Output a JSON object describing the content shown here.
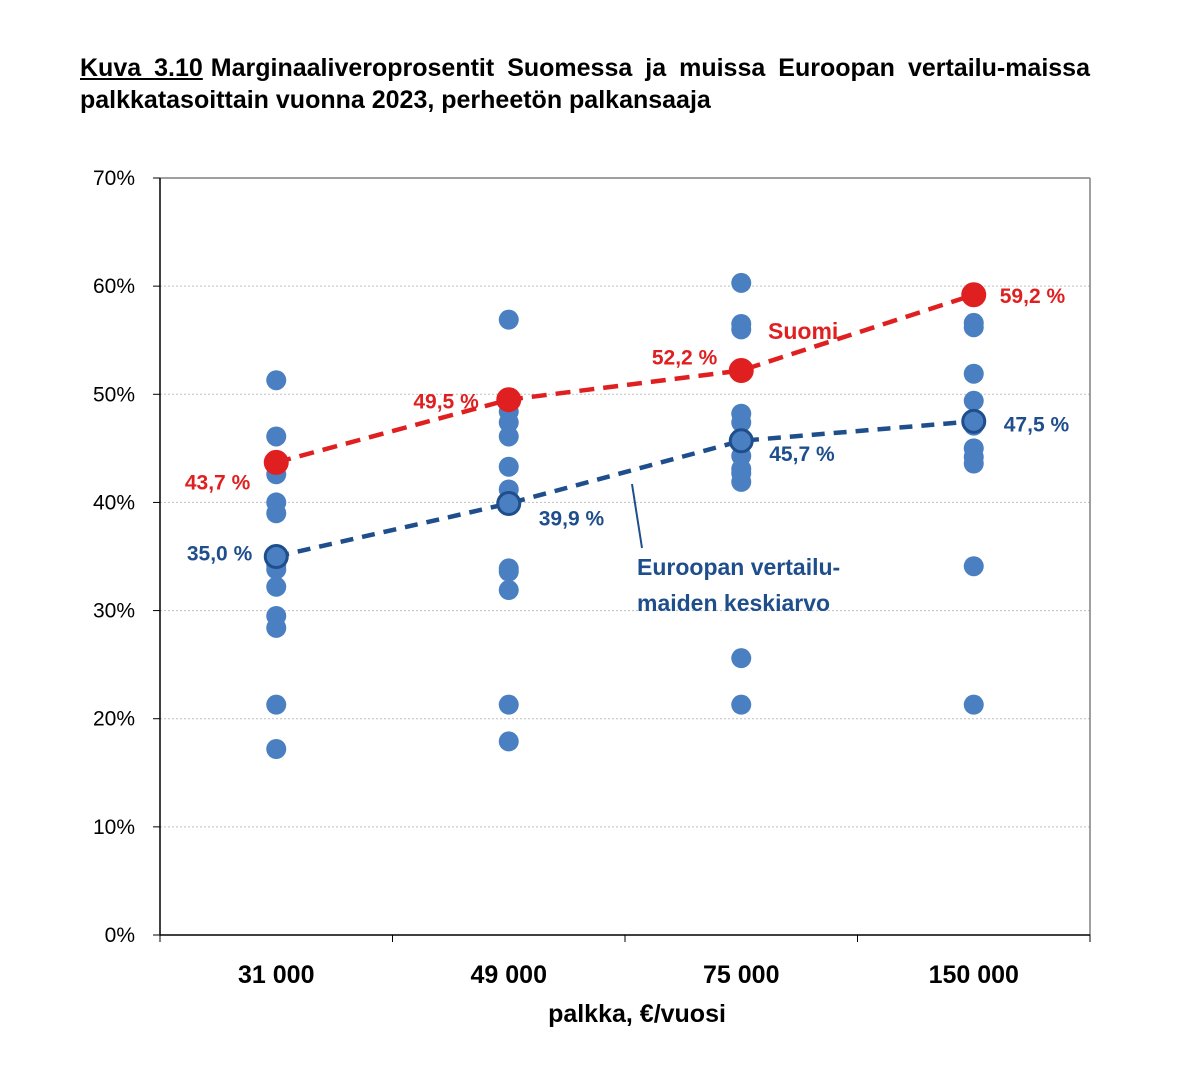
{
  "title": {
    "figure_label": "Kuva 3.10",
    "text": "Marginaaliveroprosentit Suomessa ja muissa Euroopan vertailu-maissa palkkatasoittain vuonna 2023, perheetön palkansaaja"
  },
  "chart_data": {
    "type": "scatter",
    "title": "Kuva 3.10 Marginaaliveroprosentit Suomessa ja muissa Euroopan vertailu-maissa palkkatasoittain vuonna 2023, perheetön palkansaaja",
    "xlabel": "palkka, €/vuosi",
    "ylabel": "",
    "categories": [
      "31 000",
      "49 000",
      "75 000",
      "150 000"
    ],
    "ylim": [
      0,
      70
    ],
    "yticks": [
      "0%",
      "10%",
      "20%",
      "30%",
      "40%",
      "50%",
      "60%",
      "70%"
    ],
    "grid": "horizontal",
    "country_points": [
      [
        51.3,
        46.1,
        42.6,
        40.0,
        39.0,
        35.0,
        34.2,
        33.8,
        32.2,
        29.5,
        28.4,
        21.3,
        17.2
      ],
      [
        56.9,
        49.5,
        48.4,
        47.4,
        46.1,
        43.3,
        41.2,
        40.3,
        33.9,
        33.6,
        31.9,
        21.3,
        17.9
      ],
      [
        60.3,
        56.5,
        56.0,
        52.2,
        48.2,
        47.4,
        45.5,
        44.3,
        43.1,
        42.7,
        41.9,
        25.6,
        21.3
      ],
      [
        59.3,
        56.6,
        56.2,
        51.9,
        49.4,
        47.3,
        47.1,
        45.0,
        44.2,
        43.6,
        34.1,
        21.3
      ]
    ],
    "series": [
      {
        "name": "Suomi",
        "values": [
          43.7,
          49.5,
          52.2,
          59.2
        ],
        "labels": [
          "43,7 %",
          "49,5 %",
          "52,2 %",
          "59,2 %"
        ],
        "color": "#e02020"
      },
      {
        "name": "Euroopan vertailu-maiden keskiarvo",
        "name_lines": [
          "Euroopan vertailu-",
          "maiden keskiarvo"
        ],
        "values": [
          35.0,
          39.9,
          45.7,
          47.5
        ],
        "labels": [
          "35,0 %",
          "39,9 %",
          "45,7 %",
          "47,5 %"
        ],
        "color": "#1f4e8c"
      }
    ],
    "point_color": "#4a7fc1"
  }
}
